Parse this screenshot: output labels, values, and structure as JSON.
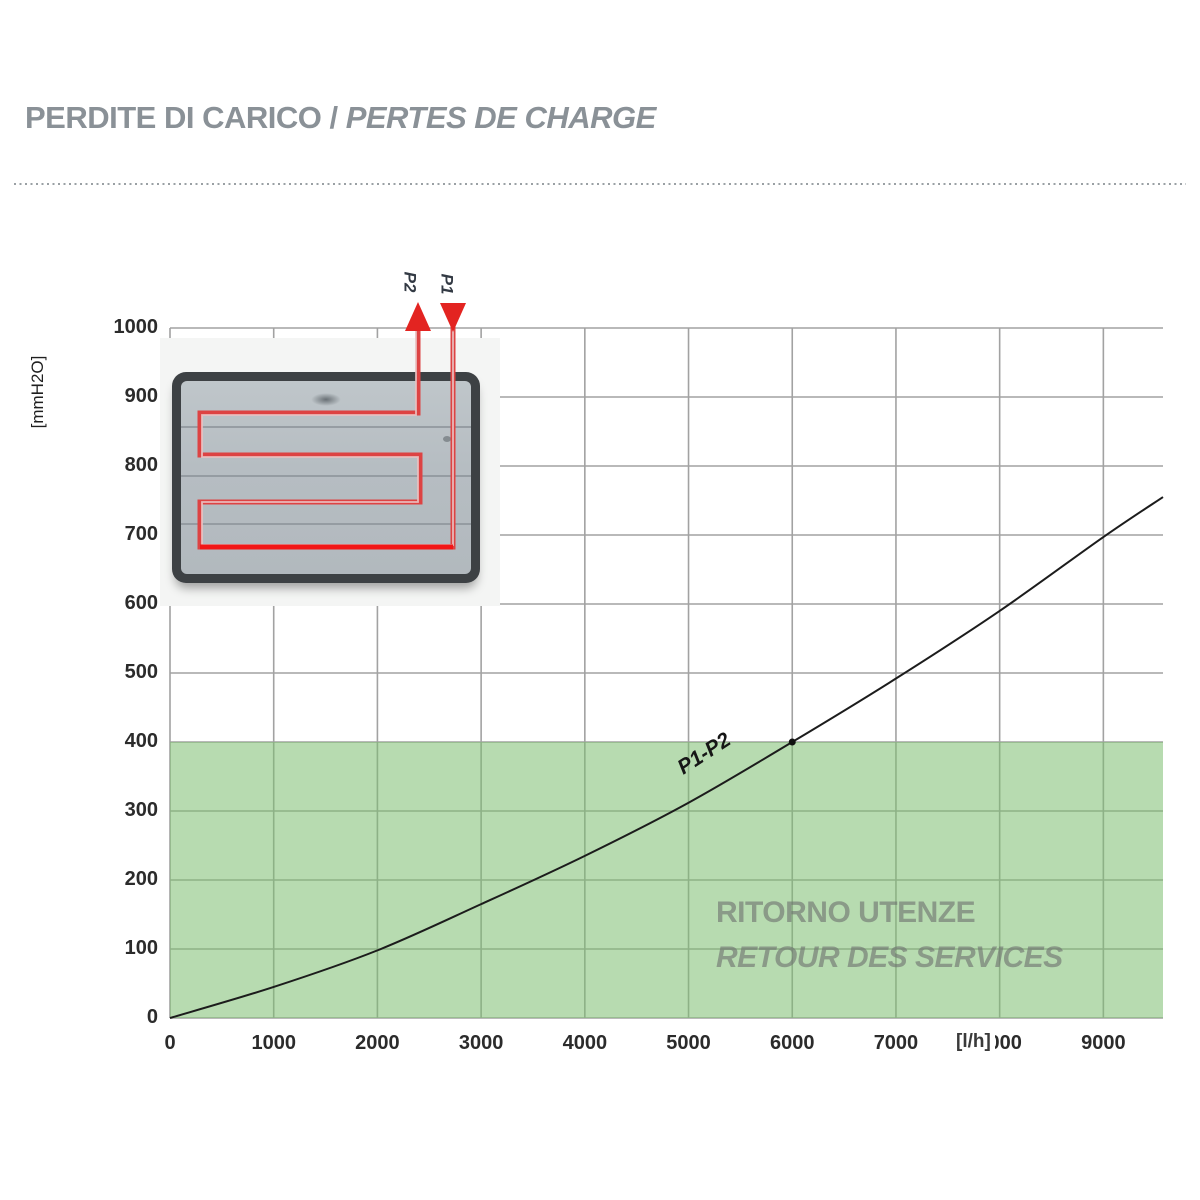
{
  "header": {
    "title_it": "PERDITE DI CARICO",
    "title_sep": " / ",
    "title_fr": "PERTES DE CHARGE"
  },
  "chart_data": {
    "type": "line",
    "xlabel": "[l/h]",
    "ylabel": "[mmH2O]",
    "xlim": [
      0,
      9575
    ],
    "ylim": [
      0,
      1000
    ],
    "xticks": [
      0,
      1000,
      2000,
      3000,
      4000,
      5000,
      6000,
      7000,
      8000,
      9000
    ],
    "yticks": [
      0,
      100,
      200,
      300,
      400,
      500,
      600,
      700,
      800,
      900,
      1000
    ],
    "grid": true,
    "grid_color": "#a2a2a2",
    "series": [
      {
        "name": "P1-P2",
        "color": "#1c1c1c",
        "x": [
          0,
          1000,
          2000,
          3000,
          4000,
          5000,
          6000,
          7000,
          8000,
          9000,
          9575
        ],
        "y": [
          0,
          45,
          98,
          165,
          235,
          312,
          400,
          492,
          590,
          697,
          755
        ]
      }
    ],
    "marker_point": {
      "x": 6000,
      "y": 400
    },
    "curve_label": "P1-P2",
    "shaded_zone": {
      "ymin": 0,
      "ymax": 400,
      "fill": "rgba(123,189,112,0.55)",
      "label_line1": "RITORNO UTENZE",
      "label_line2": "RETOUR DES SERVICES"
    }
  },
  "inset": {
    "p1_label": "P1",
    "p2_label": "P2",
    "pipe_color": "#dd4343",
    "arrow_color": "#e32421"
  }
}
